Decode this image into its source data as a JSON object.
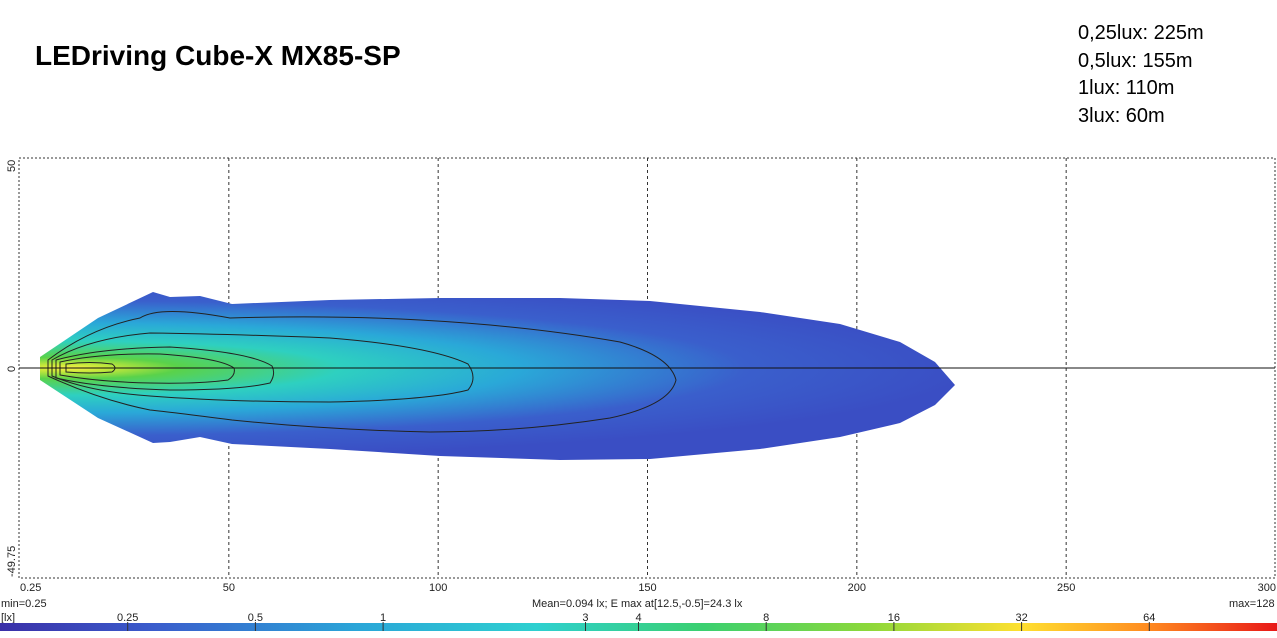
{
  "title": "LEDriving Cube-X MX85-SP",
  "legend_distances": [
    "0,25lux: 225m",
    "0,5lux: 155m",
    "1lux: 110m",
    "3lux: 60m"
  ],
  "footer": {
    "min_label": "min=0.25",
    "max_label": "max=128",
    "mean_label": "Mean=0.094 lx; E max at[12.5,-0.5]=24.3 lx",
    "unit_label": "[lx]"
  },
  "chart_data": {
    "type": "heatmap",
    "title": "LEDriving Cube-X MX85-SP",
    "xlabel": "",
    "ylabel": "",
    "x_ticks": [
      "0.25",
      "50",
      "100",
      "150",
      "200",
      "250",
      "300"
    ],
    "x_tick_values": [
      0.25,
      50,
      100,
      150,
      200,
      250,
      300
    ],
    "y_ticks": [
      "50",
      "0",
      "-49.75"
    ],
    "y_tick_values": [
      50,
      0,
      -49.75
    ],
    "xlim": [
      0.25,
      300
    ],
    "ylim": [
      -49.75,
      50
    ],
    "grid": true,
    "colorbar": {
      "labels": [
        "0.25",
        "0.5",
        "1",
        "3",
        "4",
        "8",
        "16",
        "32",
        "64"
      ],
      "values": [
        0.25,
        0.5,
        1,
        3,
        4,
        8,
        16,
        32,
        64
      ],
      "min": 0.25,
      "max": 128
    },
    "isolux_ranges": [
      {
        "lux": 0.25,
        "distance_m": 225
      },
      {
        "lux": 0.5,
        "distance_m": 155
      },
      {
        "lux": 1,
        "distance_m": 110
      },
      {
        "lux": 3,
        "distance_m": 60
      }
    ],
    "colors": {
      "low": "#3a52c8",
      "mid": "#2ed0d0",
      "high": "#4cd24c",
      "peak": "#ffe84a",
      "max": "#e81818"
    }
  }
}
